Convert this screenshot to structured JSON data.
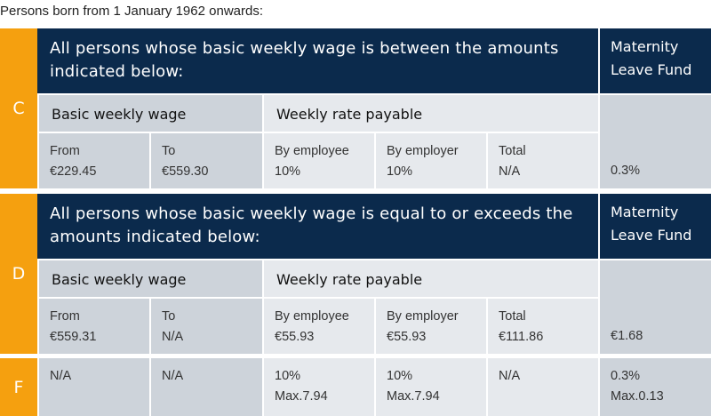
{
  "caption": "Persons born from 1 January 1962 onwards:",
  "sections": [
    {
      "letter": "C",
      "heading": "All persons whose basic weekly wage is between the amounts indicated below:",
      "fund_heading": "Maternity Leave Fund",
      "wage_heading": "Basic weekly wage",
      "rate_heading": "Weekly rate payable",
      "cells": [
        {
          "label": "From",
          "value": "€229.45"
        },
        {
          "label": "To",
          "value": "€559.30"
        },
        {
          "label": "By employee",
          "value": "10%"
        },
        {
          "label": "By employer",
          "value": "10%"
        },
        {
          "label": "Total",
          "value": "N/A"
        }
      ],
      "fund_value": "0.3%"
    },
    {
      "letter": "D",
      "heading": "All persons whose basic weekly wage is equal to or exceeds the amounts indicated below:",
      "fund_heading": "Maternity Leave Fund",
      "wage_heading": "Basic weekly wage",
      "rate_heading": "Weekly rate payable",
      "cells": [
        {
          "label": "From",
          "value": "€559.31"
        },
        {
          "label": "To",
          "value": "N/A"
        },
        {
          "label": "By employee",
          "value": "€55.93"
        },
        {
          "label": "By employer",
          "value": "€55.93"
        },
        {
          "label": "Total",
          "value": "€111.86"
        }
      ],
      "fund_value": "€1.68"
    },
    {
      "letter": "F",
      "cells": [
        {
          "value": "N/A"
        },
        {
          "value": "N/A"
        },
        {
          "value": "10%",
          "note": "Max.7.94"
        },
        {
          "value": "10%",
          "note": "Max.7.94"
        },
        {
          "value": "N/A"
        }
      ],
      "fund_value": "0.3%",
      "fund_note": "Max.0.13"
    }
  ]
}
